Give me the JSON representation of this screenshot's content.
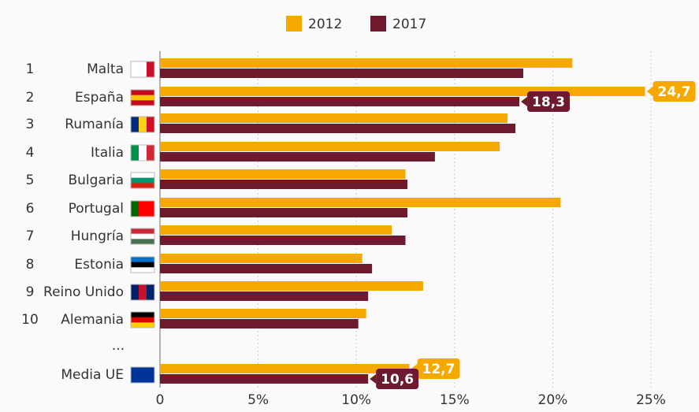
{
  "chart_data": {
    "type": "bar",
    "orientation": "horizontal",
    "ranks": [
      "1",
      "2",
      "3",
      "4",
      "5",
      "6",
      "7",
      "8",
      "9",
      "10",
      null,
      null
    ],
    "categories": [
      "Malta",
      "España",
      "Rumanía",
      "Italia",
      "Bulgaria",
      "Portugal",
      "Hungría",
      "Estonia",
      "Reino Unido",
      "Alemania",
      "...",
      "Media UE"
    ],
    "series": [
      {
        "name": "2012",
        "color": "#f5a800",
        "values": [
          21.0,
          24.7,
          17.7,
          17.3,
          12.5,
          20.4,
          11.8,
          10.3,
          13.4,
          10.5,
          null,
          12.7
        ],
        "value_labels": [
          null,
          "24,7",
          null,
          null,
          null,
          null,
          null,
          null,
          null,
          null,
          null,
          "12,7"
        ]
      },
      {
        "name": "2017",
        "color": "#6e1a2e",
        "values": [
          18.5,
          18.3,
          18.1,
          14.0,
          12.6,
          12.6,
          12.5,
          10.8,
          10.6,
          10.1,
          null,
          10.6
        ],
        "value_labels": [
          null,
          "18,3",
          null,
          null,
          null,
          null,
          null,
          null,
          null,
          null,
          null,
          "10,6"
        ]
      }
    ],
    "xlim": [
      0,
      25.5
    ],
    "xticks": [
      0,
      {
        "value": 5,
        "label": "5%"
      },
      {
        "value": 10,
        "label": "10%"
      },
      {
        "value": 15,
        "label": "15%"
      },
      {
        "value": 20,
        "label": "20%"
      },
      {
        "value": 25,
        "label": "25%"
      }
    ],
    "grid": true,
    "legend": "top"
  }
}
